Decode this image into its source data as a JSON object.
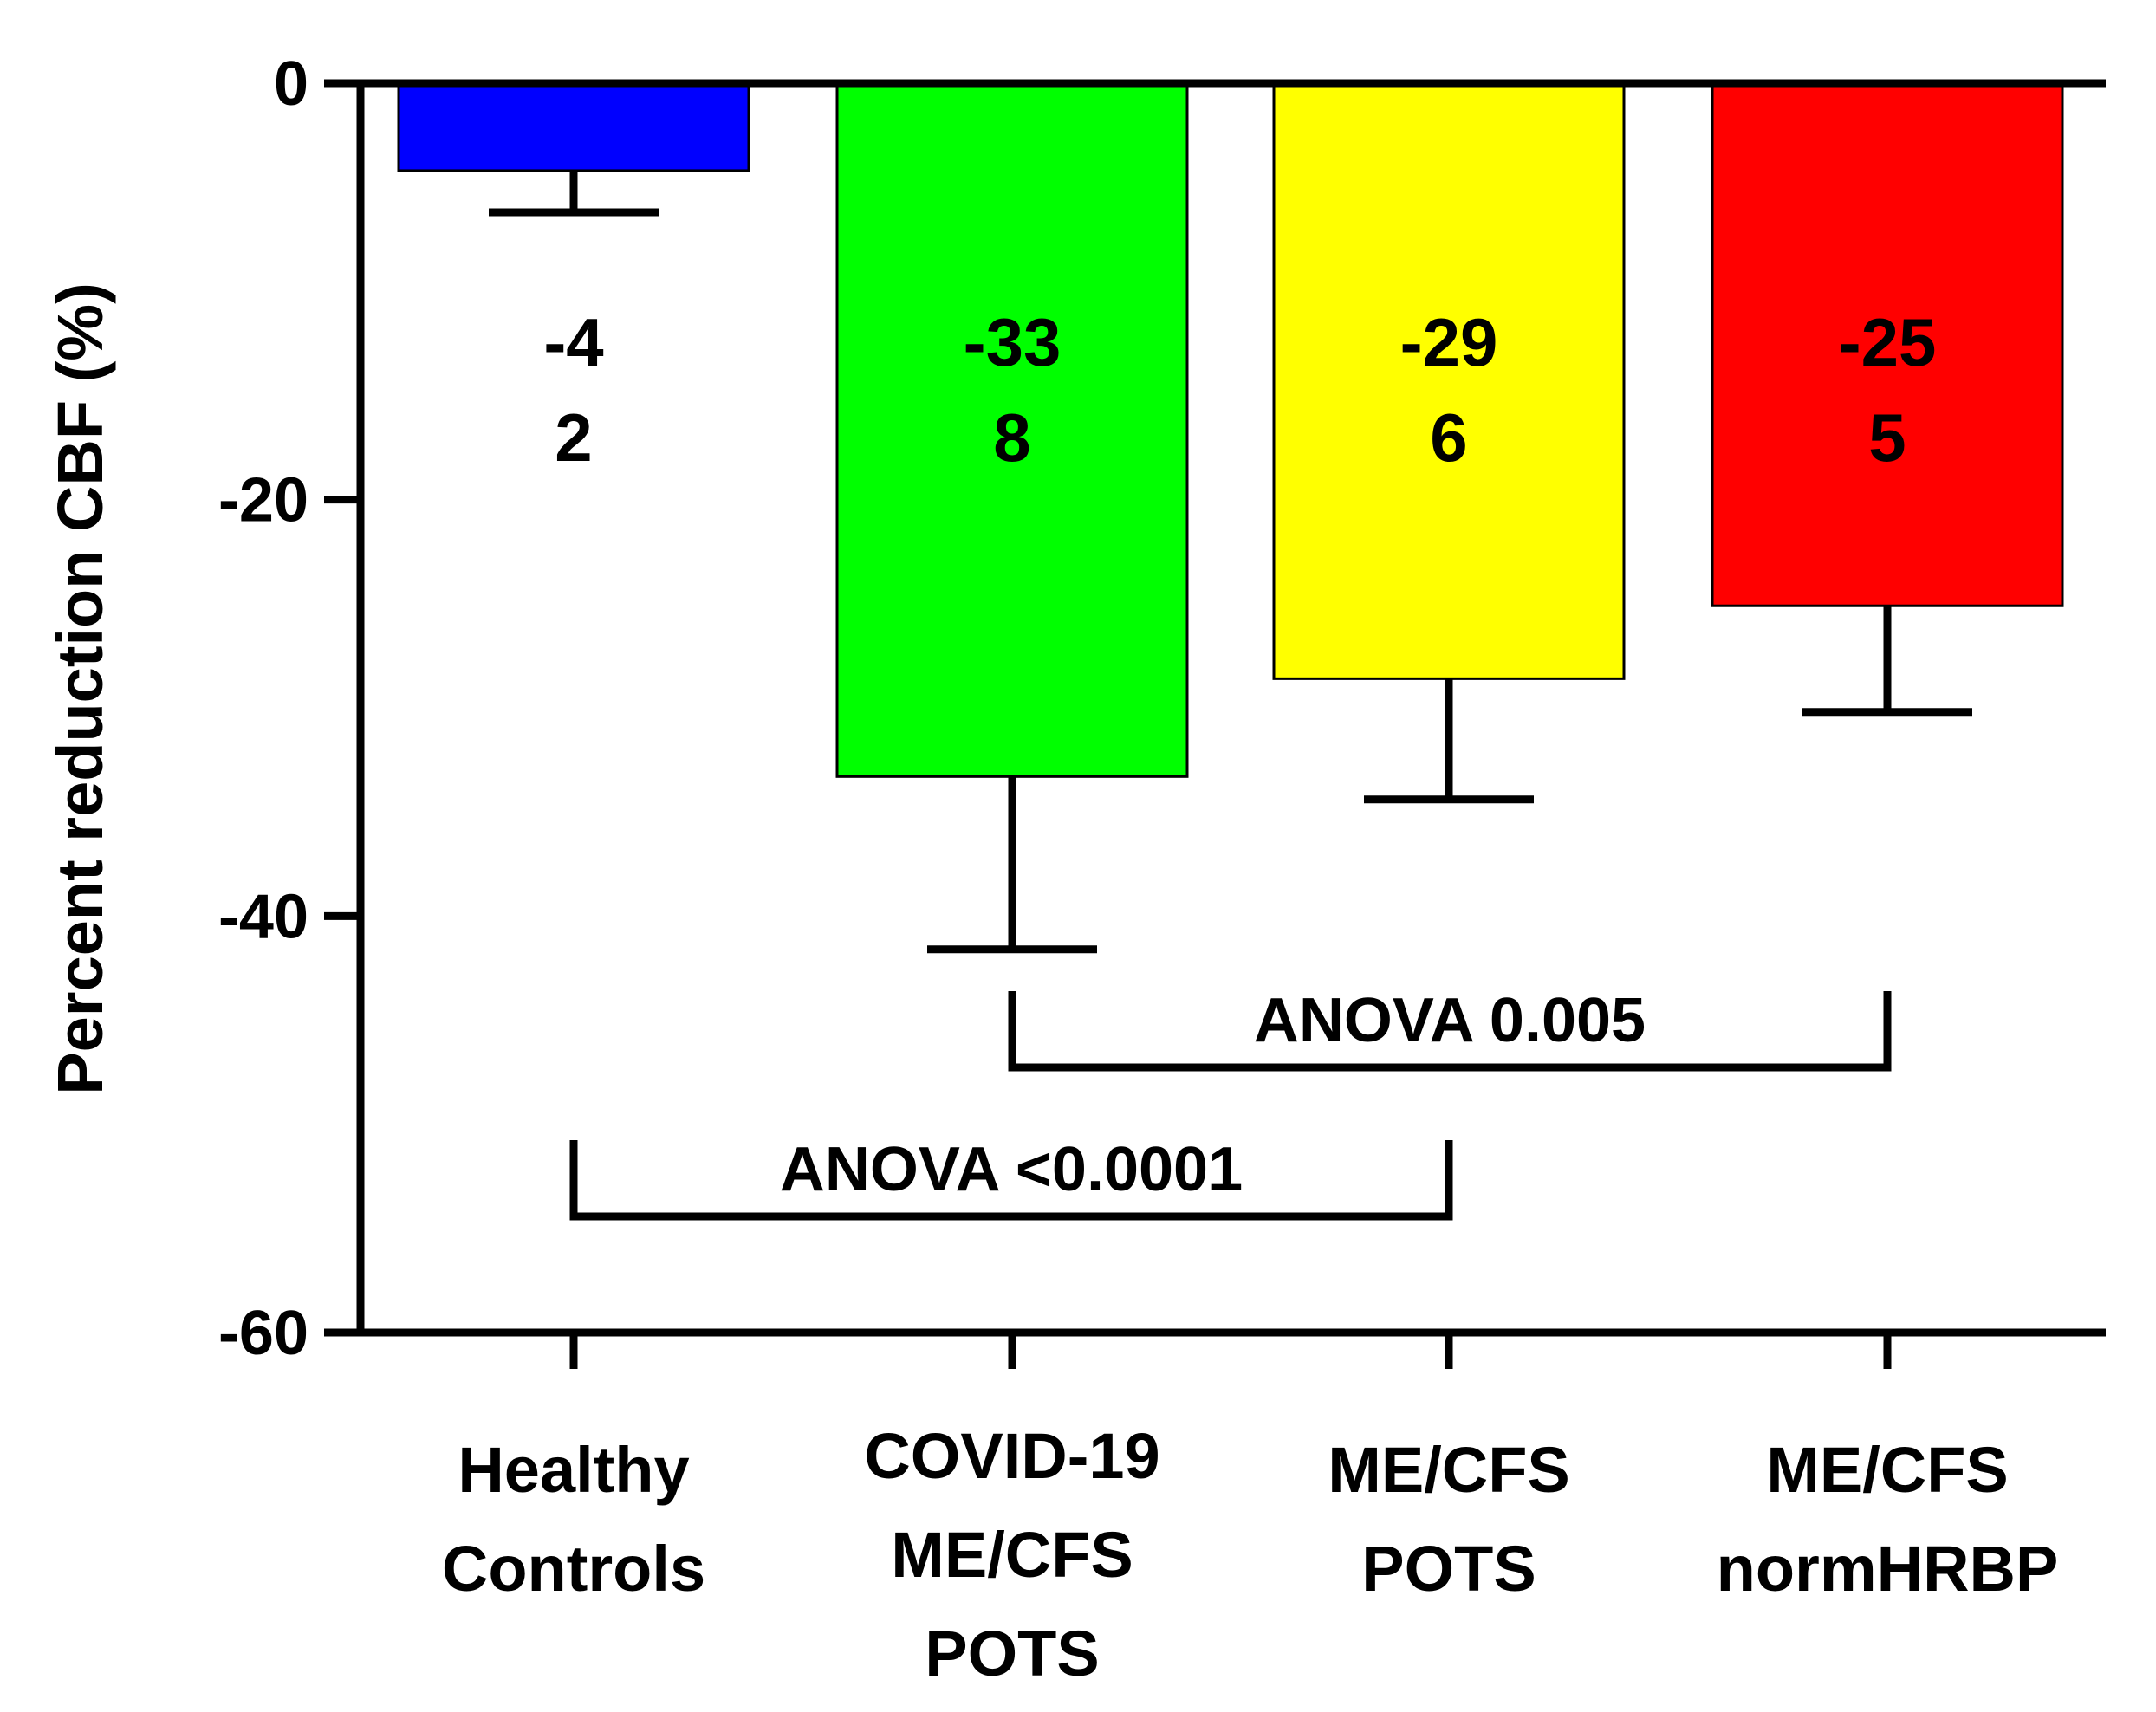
{
  "chart_data": {
    "type": "bar",
    "title": "",
    "xlabel": "",
    "ylabel": "Percent reduction CBF (%)",
    "ylim": [
      -60,
      0
    ],
    "yticks": [
      0,
      -20,
      -40,
      -60
    ],
    "ytick_labels": [
      "0",
      "-20",
      "-40",
      "-60"
    ],
    "grid": false,
    "categories": [
      [
        "Healthy",
        "Controls"
      ],
      [
        "COVID-19",
        "ME/CFS",
        "POTS"
      ],
      [
        "ME/CFS",
        "POTS"
      ],
      [
        "ME/CFS",
        "normHRBP"
      ]
    ],
    "values": [
      -4.2,
      -33.3,
      -28.6,
      -25.1
    ],
    "errors": [
      2.0,
      8.3,
      5.8,
      5.1
    ],
    "colors": [
      "#0000ff",
      "#00ff00",
      "#ffff00",
      "#ff0000"
    ],
    "data_labels": [
      {
        "mean": "-4",
        "sd": "2"
      },
      {
        "mean": "-33",
        "sd": "8"
      },
      {
        "mean": "-29",
        "sd": "6"
      },
      {
        "mean": "-25",
        "sd": "5"
      }
    ],
    "comparisons": [
      {
        "label": "ANOVA 0.005",
        "from": 1,
        "to": 3
      },
      {
        "label": "ANOVA <0.0001",
        "from": 0,
        "to": 2
      }
    ]
  }
}
